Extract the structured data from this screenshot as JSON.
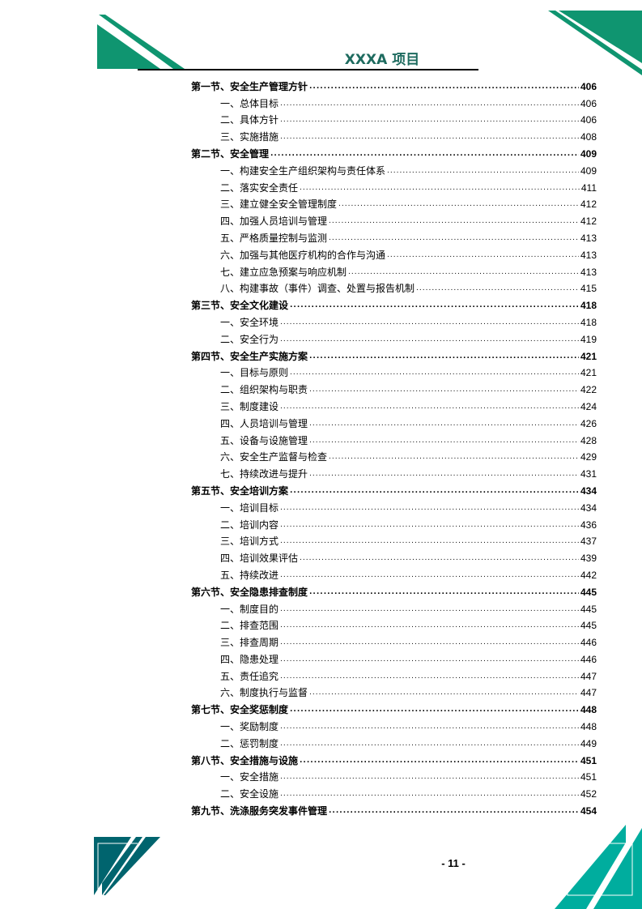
{
  "header": {
    "title": "XXXA 项目"
  },
  "colors": {
    "green": "#0f9570",
    "dark_teal": "#00646e",
    "teal": "#00ad9e",
    "title": "#1e6b5f"
  },
  "toc": [
    {
      "level": 1,
      "label": "第一节、安全生产管理方针",
      "page": "406"
    },
    {
      "level": 2,
      "label": "一、总体目标",
      "page": "406"
    },
    {
      "level": 2,
      "label": "二、具体方针",
      "page": "406"
    },
    {
      "level": 2,
      "label": "三、实施措施",
      "page": "408"
    },
    {
      "level": 1,
      "label": "第二节、安全管理",
      "page": "409"
    },
    {
      "level": 2,
      "label": "一、构建安全生产组织架构与责任体系",
      "page": "409"
    },
    {
      "level": 2,
      "label": "二、落实安全责任",
      "page": "411"
    },
    {
      "level": 2,
      "label": "三、建立健全安全管理制度",
      "page": "412"
    },
    {
      "level": 2,
      "label": "四、加强人员培训与管理",
      "page": "412"
    },
    {
      "level": 2,
      "label": "五、严格质量控制与监测",
      "page": "413"
    },
    {
      "level": 2,
      "label": "六、加强与其他医疗机构的合作与沟通",
      "page": "413"
    },
    {
      "level": 2,
      "label": "七、建立应急预案与响应机制",
      "page": "413"
    },
    {
      "level": 2,
      "label": "八、构建事故（事件）调查、处置与报告机制",
      "page": "415"
    },
    {
      "level": 1,
      "label": "第三节、安全文化建设",
      "page": "418"
    },
    {
      "level": 2,
      "label": "一、安全环境",
      "page": "418"
    },
    {
      "level": 2,
      "label": "二、安全行为",
      "page": "419"
    },
    {
      "level": 1,
      "label": "第四节、安全生产实施方案",
      "page": "421"
    },
    {
      "level": 2,
      "label": "一、目标与原则",
      "page": "421"
    },
    {
      "level": 2,
      "label": "二、组织架构与职责",
      "page": "422"
    },
    {
      "level": 2,
      "label": "三、制度建设",
      "page": "424"
    },
    {
      "level": 2,
      "label": "四、人员培训与管理",
      "page": "426"
    },
    {
      "level": 2,
      "label": "五、设备与设施管理",
      "page": "428"
    },
    {
      "level": 2,
      "label": "六、安全生产监督与检查",
      "page": "429"
    },
    {
      "level": 2,
      "label": "七、持续改进与提升",
      "page": "431"
    },
    {
      "level": 1,
      "label": "第五节、安全培训方案",
      "page": "434"
    },
    {
      "level": 2,
      "label": "一、培训目标",
      "page": "434"
    },
    {
      "level": 2,
      "label": "二、培训内容",
      "page": "436"
    },
    {
      "level": 2,
      "label": "三、培训方式",
      "page": "437"
    },
    {
      "level": 2,
      "label": "四、培训效果评估",
      "page": "439"
    },
    {
      "level": 2,
      "label": "五、持续改进",
      "page": "442"
    },
    {
      "level": 1,
      "label": "第六节、安全隐患排查制度",
      "page": "445"
    },
    {
      "level": 2,
      "label": "一、制度目的",
      "page": "445"
    },
    {
      "level": 2,
      "label": "二、排查范围",
      "page": "445"
    },
    {
      "level": 2,
      "label": "三、排查周期",
      "page": "446"
    },
    {
      "level": 2,
      "label": "四、隐患处理",
      "page": "446"
    },
    {
      "level": 2,
      "label": "五、责任追究",
      "page": "447"
    },
    {
      "level": 2,
      "label": "六、制度执行与监督",
      "page": "447"
    },
    {
      "level": 1,
      "label": "第七节、安全奖惩制度",
      "page": "448"
    },
    {
      "level": 2,
      "label": "一、奖励制度",
      "page": "448"
    },
    {
      "level": 2,
      "label": "二、惩罚制度",
      "page": "449"
    },
    {
      "level": 1,
      "label": "第八节、安全措施与设施",
      "page": "451"
    },
    {
      "level": 2,
      "label": "一、安全措施",
      "page": "451"
    },
    {
      "level": 2,
      "label": "二、安全设施",
      "page": "452"
    },
    {
      "level": 1,
      "label": "第九节、洗涤服务突发事件管理",
      "page": "454"
    }
  ],
  "footer": {
    "page_number": "- 11 -"
  }
}
